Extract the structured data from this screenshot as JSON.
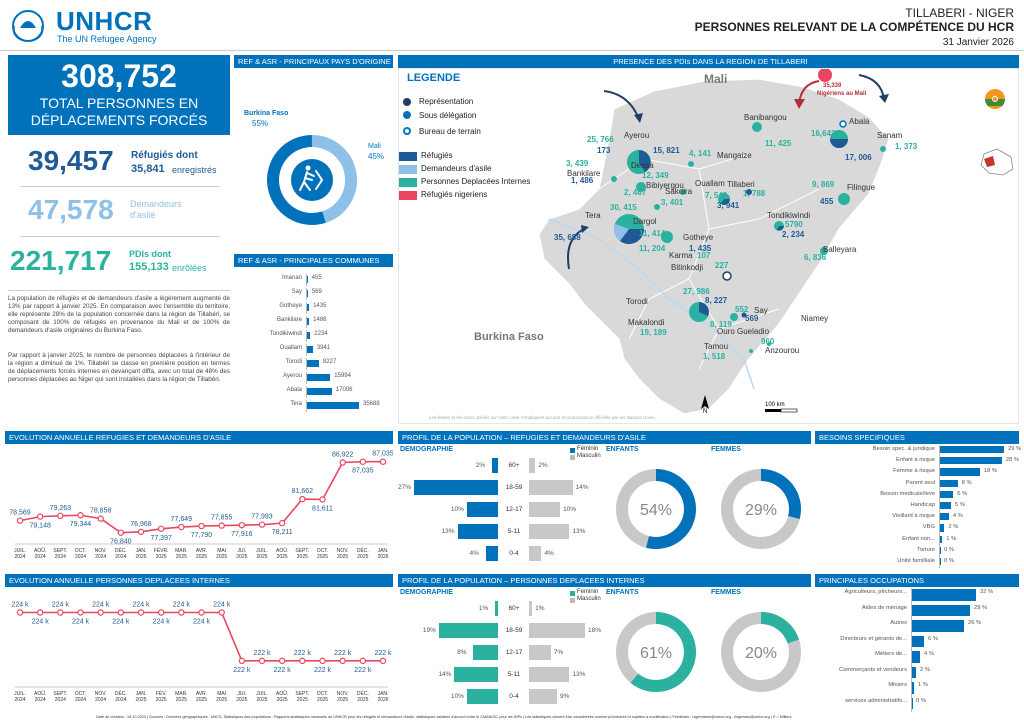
{
  "header": {
    "org": "UNHCR",
    "org_sub": "The UN Refugee Agency",
    "location": "TILLABERI - NIGER",
    "title": "PERSONNES RELEVANT DE LA COMPÉTENCE DU HCR",
    "date": "31 Janvier 2026"
  },
  "kpis": {
    "total": "308,752",
    "total_label": "TOTAL PERSONNES EN DÉPLACEMENTS FORCÉS",
    "refugies": "39,457",
    "refugies_label": "Réfugiés dont",
    "refugies_sub": "35,841",
    "refugies_sub_label": "enregistrés",
    "asile": "47,578",
    "asile_label": "Demandeurs d'asile",
    "pdi": "221,717",
    "pdi_label": "PDIs dont",
    "pdi_sub": "155,133",
    "pdi_sub_label": "enrôlées"
  },
  "text": {
    "p1": "La population de réfugiés et de demandeurs d'asile a légèrement augmenté de 13% par rapport à janvier 2025. En comparaison avec l'ensemble du territoire, elle représente 28% de la population concernée dans la région de Tillabéri, se composant de 100% de réfugiés en provenance du Mali et de 100% de demandeurs d'asile originaires du Burkina Faso.",
    "p2": "Par rapport à janvier 2025, le nombre de personnes déplacées à l'intérieur de la région a diminué de 1%. Tillabéri se classe en première position en termes de déplacements forcés internes en devançant diffa, avec un total de 48% des personnes déplacées au Niger qui sont installées dans la région de Tillabéri."
  },
  "origin": {
    "title": "REF & ASR - PRINCIPAUX PAYS D'ORIGINE",
    "bf_label": "Burkina Faso",
    "bf_pct": "55%",
    "mali_label": "Mali",
    "mali_pct": "45%",
    "bf_value": 55,
    "mali_value": 45
  },
  "communes": {
    "title": "REF & ASR - PRINCIPALES COMMUNES",
    "items": [
      {
        "name": "Imanan",
        "value": 455,
        "label": "455"
      },
      {
        "name": "Say",
        "value": 569,
        "label": "569"
      },
      {
        "name": "Gotheye",
        "value": 1435,
        "label": "1435"
      },
      {
        "name": "Bankilare",
        "value": 1486,
        "label": "1486"
      },
      {
        "name": "Tondikiwindi",
        "value": 2234,
        "label": "2234"
      },
      {
        "name": "Ouallam",
        "value": 3941,
        "label": "3941"
      },
      {
        "name": "Torodi",
        "value": 8227,
        "label": "8227"
      },
      {
        "name": "Ayerou",
        "value": 15994,
        "label": "15994"
      },
      {
        "name": "Abala",
        "value": 17006,
        "label": "17006"
      },
      {
        "name": "Tera",
        "value": 35688,
        "label": "35688"
      }
    ]
  },
  "map": {
    "title": "PRESENCE DES PDIs DANS LA REGION DE TILLABERI",
    "legend_title": "LEGENDE",
    "legend": [
      "Représentation",
      "Sous délégation",
      "Bureau de terrain",
      "Réfugiés",
      "Demandeurs d'asile",
      "Personnes Deplacées Internes",
      "Réfugiés nigeriens"
    ],
    "colors": {
      "ref": "#1f5a96",
      "asile": "#8fc1e8",
      "pdi": "#2bb1a0",
      "nig": "#e8475f"
    },
    "countries": {
      "mali": "Mali",
      "bf": "Burkina Faso",
      "niamey": "Niamey"
    },
    "nigeriens": {
      "value": "35,339",
      "label": "Nigériens au Mali"
    },
    "places": [
      {
        "name": "Ayerou",
        "nums": [
          {
            "v": "25, 766",
            "c": "pdi"
          },
          {
            "v": "173",
            "c": "ref"
          },
          {
            "v": "15, 821",
            "c": "ref"
          }
        ]
      },
      {
        "name": "Banibangou",
        "nums": [
          {
            "v": "11, 425",
            "c": "pdi"
          }
        ]
      },
      {
        "name": "Abala",
        "nums": [
          {
            "v": "16,642",
            "c": "pdi"
          },
          {
            "v": "17, 006",
            "c": "ref"
          }
        ]
      },
      {
        "name": "Sanam",
        "nums": [
          {
            "v": "1, 373",
            "c": "pdi"
          }
        ]
      },
      {
        "name": "Mangaize",
        "nums": [
          {
            "v": "4, 141",
            "c": "pdi"
          }
        ]
      },
      {
        "name": "Bankilare",
        "nums": [
          {
            "v": "3, 439",
            "c": "pdi"
          },
          {
            "v": "1, 486",
            "c": "ref"
          }
        ]
      },
      {
        "name": "Dessa",
        "nums": [
          {
            "v": "12, 349",
            "c": "pdi"
          }
        ]
      },
      {
        "name": "Bibiyergou",
        "nums": [
          {
            "v": "2, 467",
            "c": "pdi"
          }
        ]
      },
      {
        "name": "Sakoira",
        "nums": [
          {
            "v": "3, 401",
            "c": "pdi"
          }
        ]
      },
      {
        "name": "Ouallam",
        "nums": [
          {
            "v": "7, 549",
            "c": "pdi"
          },
          {
            "v": "3, 941",
            "c": "ref"
          }
        ]
      },
      {
        "name": "Tillaberi",
        "nums": [
          {
            "v": "1, 788",
            "c": "pdi"
          }
        ]
      },
      {
        "name": "Filingue",
        "nums": [
          {
            "v": "9, 869",
            "c": "pdi"
          },
          {
            "v": "455",
            "c": "ref"
          }
        ]
      },
      {
        "name": "Tondikiwindi",
        "nums": [
          {
            "v": "5790",
            "c": "pdi"
          },
          {
            "v": "2, 234",
            "c": "ref"
          }
        ]
      },
      {
        "name": "Tera",
        "nums": [
          {
            "v": "30, 415",
            "c": "pdi"
          },
          {
            "v": "35, 688",
            "c": "ref"
          }
        ]
      },
      {
        "name": "Dargol",
        "nums": [
          {
            "v": "11, 414",
            "c": "pdi"
          },
          {
            "v": "11, 204",
            "c": "pdi"
          }
        ]
      },
      {
        "name": "Gotheye",
        "nums": [
          {
            "v": "1, 435",
            "c": "ref"
          }
        ]
      },
      {
        "name": "Karma",
        "nums": [
          {
            "v": "107",
            "c": "pdi"
          }
        ]
      },
      {
        "name": "Bitinkodji",
        "nums": [
          {
            "v": "227",
            "c": "pdi"
          }
        ]
      },
      {
        "name": "Balleyara",
        "nums": [
          {
            "v": "6, 836",
            "c": "pdi"
          }
        ]
      },
      {
        "name": "Torodi",
        "nums": [
          {
            "v": "27, 986",
            "c": "pdi"
          },
          {
            "v": "8, 227",
            "c": "ref"
          }
        ]
      },
      {
        "name": "Makalondi",
        "nums": [
          {
            "v": "19, 189",
            "c": "pdi"
          }
        ]
      },
      {
        "name": "Say",
        "nums": [
          {
            "v": "552",
            "c": "pdi"
          },
          {
            "v": "569",
            "c": "ref"
          }
        ]
      },
      {
        "name": "Ouro Gueladio",
        "nums": [
          {
            "v": "8, 119",
            "c": "pdi"
          }
        ]
      },
      {
        "name": "Tamou",
        "nums": [
          {
            "v": "1, 518",
            "c": "pdi"
          }
        ]
      },
      {
        "name": "Anzourou",
        "nums": [
          {
            "v": "960",
            "c": "pdi"
          }
        ]
      }
    ],
    "scale": "100 km",
    "north": "N",
    "disclaimer": "Les limites et les noms utilisés sur cette carte n'impliquent aucune reconnaissance officielle par les Nations Unies."
  },
  "chart_ref": {
    "title": "EVOLUTION ANNUELLE REFUGIES ET DEMANDEURS D'ASILE",
    "chart_data": {
      "type": "line",
      "x": [
        "JUIL. 2024",
        "AOÛ. 2024",
        "SEPT. 2024",
        "OCT. 2024",
        "NOV. 2024",
        "DÉC. 2024",
        "JAN. 2025",
        "FÉVR. 2025",
        "MAR. 2025",
        "AVR. 2025",
        "MAI 2025",
        "JUI. 2025",
        "JUIL. 2025",
        "AOÛ. 2025",
        "SEPT. 2025",
        "OCT. 2025",
        "NOV. 2025",
        "DÉC. 2025",
        "JAN. 2026"
      ],
      "values": [
        78569,
        79148,
        79263,
        79344,
        78858,
        76840,
        76968,
        77397,
        77649,
        77790,
        77855,
        77916,
        77993,
        78211,
        81662,
        81611,
        86922,
        87035,
        87035
      ],
      "labels": [
        "78,569",
        "79,148",
        "79,263",
        "79,344",
        "78,858",
        "76,840",
        "76,968",
        "77,397",
        "77,649",
        "77,790",
        "77,855",
        "77,916",
        "77,993",
        "78,211",
        "81,662",
        "81,611",
        "86,922",
        "87,035",
        "87,035"
      ]
    }
  },
  "chart_pdi": {
    "title": "EVOLUTION ANNUELLE PERSONNES DEPLACEES INTERNES",
    "chart_data": {
      "type": "line",
      "x": [
        "JUIL. 2024",
        "AOÛ. 2024",
        "SEPT. 2024",
        "OCT. 2024",
        "NOV. 2024",
        "DÉC. 2024",
        "JAN. 2025",
        "FÉV. 2025",
        "MAR. 2025",
        "AVR. 2025",
        "MAI 2025",
        "JUI. 2025",
        "JUIL. 2025",
        "AOÛ. 2025",
        "SEPT. 2025",
        "OCT. 2025",
        "NOV. 2025",
        "DÉC. 2025",
        "JAN. 2026"
      ],
      "values": [
        224,
        224,
        224,
        224,
        224,
        224,
        224,
        224,
        224,
        224,
        224,
        222,
        222,
        222,
        222,
        222,
        222,
        222,
        222
      ],
      "labels": [
        "224 k",
        "224 k",
        "224 k",
        "224 k",
        "224 k",
        "224 k",
        "224 k",
        "224 k",
        "224 k",
        "224 k",
        "224 k",
        "222 k",
        "222 k",
        "222 k",
        "222 k",
        "222 k",
        "222 k",
        "222 k",
        "222 k"
      ]
    }
  },
  "profile_ref": {
    "title": "PROFIL DE LA POPULATION – REFUGIES ET DEMANDEURS D'ASILE",
    "demo": "DEMOGRAPHIE",
    "enfants": "ENFANTS",
    "femmes": "FEMMES",
    "legend_f": "Féminin",
    "legend_m": "Masculin",
    "rows": [
      {
        "age": "60+",
        "f": 2,
        "m": 2,
        "fl": "2%",
        "ml": "2%"
      },
      {
        "age": "18-59",
        "f": 27,
        "m": 14,
        "fl": "27%",
        "ml": "14%"
      },
      {
        "age": "12-17",
        "f": 10,
        "m": 10,
        "fl": "10%",
        "ml": "10%"
      },
      {
        "age": "5-11",
        "f": 13,
        "m": 13,
        "fl": "13%",
        "ml": "13%"
      },
      {
        "age": "0-4",
        "f": 4,
        "m": 4,
        "fl": "4%",
        "ml": "4%"
      }
    ],
    "enfants_pct": 54,
    "enfants_label": "54%",
    "femmes_pct": 29,
    "femmes_label": "29%"
  },
  "profile_pdi": {
    "title": "PROFIL DE LA POPULATION – PERSONNES DEPLACEES INTERNES",
    "demo": "DEMOGRAPHIE",
    "enfants": "ENFANTS",
    "femmes": "FEMMES",
    "legend_f": "Féminin",
    "legend_m": "Masculin",
    "rows": [
      {
        "age": "60+",
        "f": 1,
        "m": 1,
        "fl": "1%",
        "ml": "1%"
      },
      {
        "age": "18-59",
        "f": 19,
        "m": 18,
        "fl": "19%",
        "ml": "18%"
      },
      {
        "age": "12-17",
        "f": 8,
        "m": 7,
        "fl": "8%",
        "ml": "7%"
      },
      {
        "age": "5-11",
        "f": 14,
        "m": 13,
        "fl": "14%",
        "ml": "13%"
      },
      {
        "age": "0-4",
        "f": 10,
        "m": 9,
        "fl": "10%",
        "ml": "9%"
      }
    ],
    "enfants_pct": 61,
    "enfants_label": "61%",
    "femmes_pct": 20,
    "femmes_label": "20%"
  },
  "besoins": {
    "title": "BESOINS SPECIFIQUES",
    "items": [
      {
        "name": "Besoin spec. & juridique",
        "value": 29,
        "label": "29 %"
      },
      {
        "name": "Enfant à risque",
        "value": 28,
        "label": "28 %"
      },
      {
        "name": "Femme à risque",
        "value": 18,
        "label": "18 %"
      },
      {
        "name": "Parent seul",
        "value": 8,
        "label": "8 %"
      },
      {
        "name": "Besoin medicale/leve",
        "value": 6,
        "label": "6 %"
      },
      {
        "name": "Handicap",
        "value": 5,
        "label": "5 %"
      },
      {
        "name": "Vieillard à risque",
        "value": 4,
        "label": "4 %"
      },
      {
        "name": "VBG",
        "value": 2,
        "label": "2 %"
      },
      {
        "name": "Enfant non...",
        "value": 1,
        "label": "1 %"
      },
      {
        "name": "Torture",
        "value": 0,
        "label": "0 %"
      },
      {
        "name": "Unité familliale",
        "value": 0,
        "label": "0 %"
      }
    ]
  },
  "occupations": {
    "title": "PRINCIPALES OCCUPATIONS",
    "items": [
      {
        "name": "Agriculteurs, pêcheurs...",
        "value": 32,
        "label": "32 %"
      },
      {
        "name": "Aides de ménage",
        "value": 29,
        "label": "29 %"
      },
      {
        "name": "Autres",
        "value": 26,
        "label": "26 %"
      },
      {
        "name": "Directeurs et gérants de...",
        "value": 6,
        "label": "6 %"
      },
      {
        "name": "Métiers de...",
        "value": 4,
        "label": "4 %"
      },
      {
        "name": "Commerçants et vendeurs",
        "value": 2,
        "label": "2 %"
      },
      {
        "name": "Miniers",
        "value": 1,
        "label": "1 %"
      },
      {
        "name": "services administratifs...",
        "value": 0,
        "label": "0 %"
      }
    ]
  },
  "footer": "Date de création : 19.10.2023 | Sources : Données géographiques : UNCS, Statistiques des populations : Rapports statistiques mensuels du UNHCR pour les réfugiés et demandeurs d'asile, statistiques validées d'accord entre le CMAN/GC pour les IDPs | Les statistiques doivent être considérées comme provisoires et sujettes à modification | Feedback : nigerniame@unhcr.org - lingewalu@unhcr.org | K = Milliers"
}
